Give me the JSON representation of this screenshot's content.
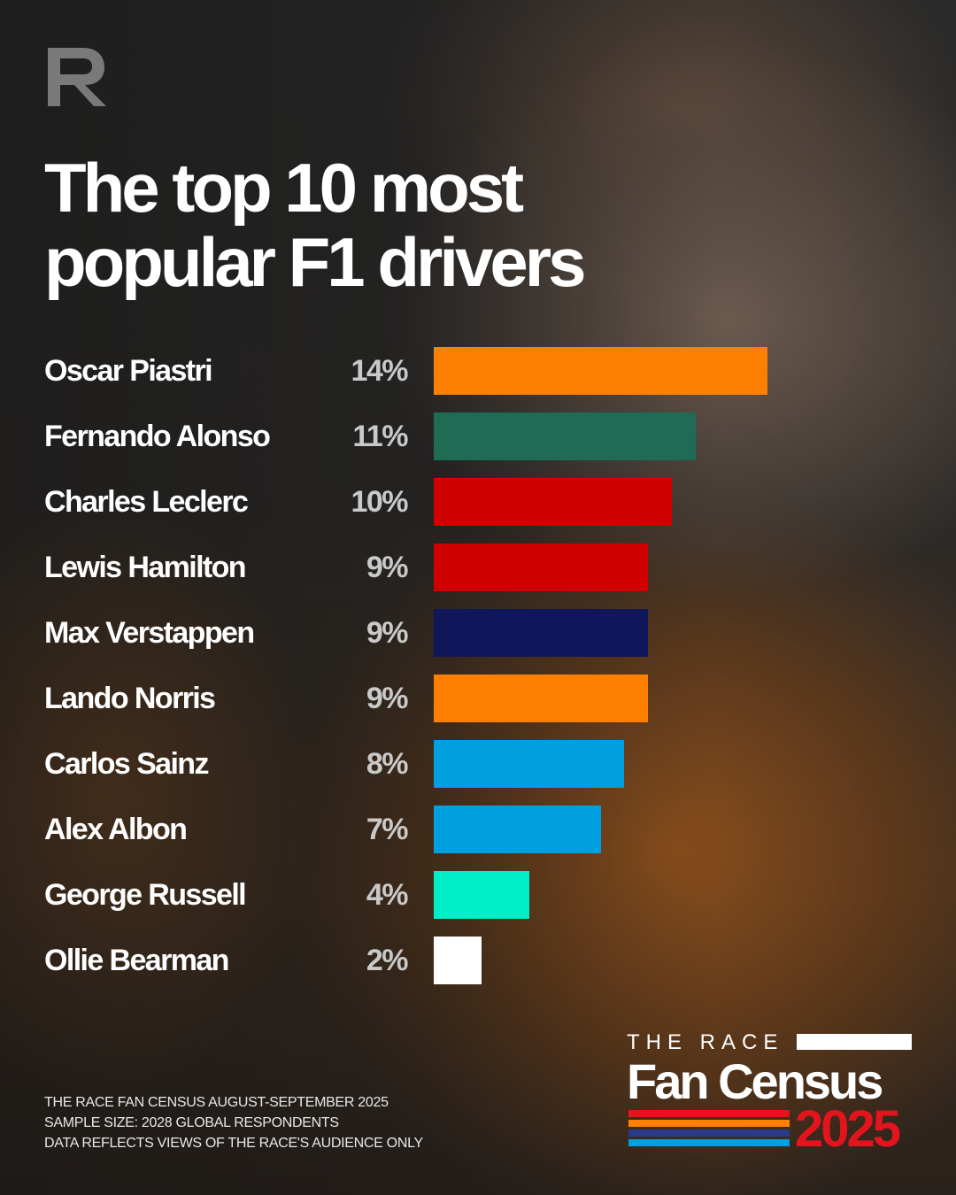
{
  "title_line1": "The top 10 most",
  "title_line2": "popular F1 drivers",
  "logo_icon": "r-logo-icon",
  "chart_data": {
    "type": "bar",
    "orientation": "horizontal",
    "title": "The top 10 most popular F1 drivers",
    "categories": [
      "Oscar Piastri",
      "Fernando Alonso",
      "Charles Leclerc",
      "Lewis Hamilton",
      "Max Verstappen",
      "Lando Norris",
      "Carlos Sainz",
      "Alex Albon",
      "George Russell",
      "Ollie Bearman"
    ],
    "values": [
      14,
      11,
      10,
      9,
      9,
      9,
      8,
      7,
      4,
      2
    ],
    "value_labels": [
      "14%",
      "11%",
      "10%",
      "9%",
      "9%",
      "9%",
      "8%",
      "7%",
      "4%",
      "2%"
    ],
    "colors": [
      "#ff8000",
      "#1f6b53",
      "#d00000",
      "#d00000",
      "#10165a",
      "#ff8000",
      "#009fe0",
      "#009fe0",
      "#00eec8",
      "#ffffff"
    ],
    "unit": "%",
    "xlim": [
      0,
      14
    ],
    "grid": false
  },
  "footnote": {
    "line1": "THE RACE FAN CENSUS AUGUST-SEPTEMBER 2025",
    "line2": "SAMPLE SIZE: 2028 GLOBAL RESPONDENTS",
    "line3": "DATA REFLECTS VIEWS OF THE RACE'S AUDIENCE ONLY"
  },
  "brand": {
    "top": "THE RACE",
    "main": "Fan Census",
    "year": "2025",
    "stripe_colors": [
      "#e3141d",
      "#ff8000",
      "#2a3a8a",
      "#009fe0"
    ]
  }
}
